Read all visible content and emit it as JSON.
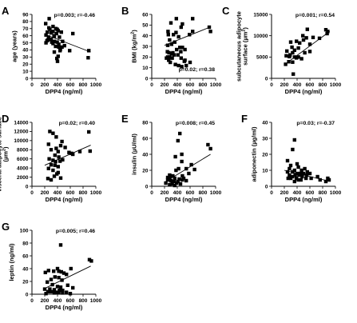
{
  "chart_data": [
    {
      "type": "scatter",
      "panel": "A",
      "xlabel": "DPP4 (ng/ml)",
      "ylabel": "age (years)",
      "xlim": [
        0,
        1000
      ],
      "ylim": [
        0,
        90
      ],
      "xticks": [
        0,
        200,
        400,
        600,
        800,
        1000
      ],
      "yticks": [
        0,
        10,
        20,
        30,
        40,
        50,
        60,
        70,
        80,
        90
      ],
      "stat": "p=0.003; r=-0.46",
      "stat_pos": "top-right",
      "trend": [
        [
          200,
          62
        ],
        [
          920,
          37
        ]
      ],
      "points": [
        [
          270,
          84
        ],
        [
          215,
          77
        ],
        [
          330,
          73
        ],
        [
          265,
          71
        ],
        [
          280,
          69
        ],
        [
          375,
          70
        ],
        [
          395,
          69
        ],
        [
          330,
          66
        ],
        [
          410,
          67
        ],
        [
          300,
          64
        ],
        [
          240,
          65
        ],
        [
          460,
          65
        ],
        [
          385,
          63
        ],
        [
          640,
          63
        ],
        [
          220,
          61
        ],
        [
          345,
          60
        ],
        [
          350,
          59
        ],
        [
          260,
          58
        ],
        [
          430,
          58
        ],
        [
          300,
          55
        ],
        [
          250,
          54
        ],
        [
          220,
          50
        ],
        [
          235,
          53
        ],
        [
          310,
          51
        ],
        [
          350,
          52
        ],
        [
          395,
          51
        ],
        [
          480,
          52
        ],
        [
          330,
          49
        ],
        [
          420,
          48
        ],
        [
          470,
          44
        ],
        [
          510,
          46
        ],
        [
          420,
          44
        ],
        [
          370,
          45
        ],
        [
          445,
          41
        ],
        [
          440,
          39
        ],
        [
          590,
          39
        ],
        [
          890,
          39
        ],
        [
          350,
          37
        ],
        [
          410,
          31
        ],
        [
          390,
          28
        ],
        [
          880,
          29
        ],
        [
          400,
          24
        ]
      ]
    },
    {
      "type": "scatter",
      "panel": "B",
      "xlabel": "DPP4 (ng/ml)",
      "ylabel": "BMI (kg/m²)",
      "ylabel_base": "BMI (kg/m",
      "ylabel_sup": "2",
      "ylabel_end": ")",
      "xlim": [
        0,
        1000
      ],
      "ylim": [
        0,
        60
      ],
      "xticks": [
        0,
        200,
        400,
        600,
        800,
        1000
      ],
      "yticks": [
        0,
        10,
        20,
        30,
        40,
        50,
        60
      ],
      "stat": "p=0.02; r=0.38",
      "stat_pos": "bottom-right",
      "trend": [
        [
          200,
          31
        ],
        [
          910,
          48
        ]
      ],
      "points": [
        [
          385,
          56
        ],
        [
          300,
          52
        ],
        [
          480,
          51
        ],
        [
          460,
          48
        ],
        [
          255,
          44
        ],
        [
          380,
          43
        ],
        [
          640,
          56
        ],
        [
          900,
          48
        ],
        [
          260,
          41
        ],
        [
          340,
          41
        ],
        [
          590,
          41
        ],
        [
          640,
          44
        ],
        [
          420,
          39
        ],
        [
          920,
          44
        ],
        [
          280,
          36
        ],
        [
          360,
          34
        ],
        [
          250,
          31
        ],
        [
          310,
          32
        ],
        [
          440,
          29
        ],
        [
          480,
          29
        ],
        [
          390,
          27
        ],
        [
          330,
          24
        ],
        [
          455,
          25
        ],
        [
          520,
          27
        ],
        [
          245,
          25
        ],
        [
          270,
          24
        ],
        [
          310,
          23
        ],
        [
          410,
          22
        ],
        [
          350,
          22
        ],
        [
          250,
          20
        ],
        [
          280,
          20
        ],
        [
          320,
          19
        ],
        [
          460,
          19
        ],
        [
          230,
          19
        ],
        [
          265,
          17
        ],
        [
          510,
          16
        ],
        [
          290,
          15
        ],
        [
          370,
          13
        ],
        [
          420,
          12
        ],
        [
          470,
          11
        ],
        [
          520,
          17
        ],
        [
          540,
          12
        ],
        [
          600,
          15
        ]
      ]
    },
    {
      "type": "scatter",
      "panel": "C",
      "xlabel": "DPP4 (ng/ml)",
      "ylabel": "subcutaneous adipocyte surface (µm²)",
      "ylabel_line1": "subcutaneous adipocyte",
      "ylabel_base": "surface (µm",
      "ylabel_sup": "2",
      "ylabel_end": ")",
      "xlim": [
        0,
        1000
      ],
      "ylim": [
        0,
        15000
      ],
      "xticks": [
        0,
        200,
        400,
        600,
        800,
        1000
      ],
      "yticks": [
        0,
        5000,
        10000,
        15000
      ],
      "stat": "p=0.001; r=0.54",
      "stat_pos": "top-right",
      "trend": [
        [
          200,
          3200
        ],
        [
          910,
          11000
        ]
      ],
      "points": [
        [
          560,
          11500
        ],
        [
          850,
          11400
        ],
        [
          880,
          11000
        ],
        [
          870,
          10500
        ],
        [
          490,
          10000
        ],
        [
          545,
          9500
        ],
        [
          650,
          9600
        ],
        [
          500,
          9000
        ],
        [
          750,
          9400
        ],
        [
          390,
          8700
        ],
        [
          300,
          8500
        ],
        [
          440,
          8300
        ],
        [
          600,
          8000
        ],
        [
          320,
          7300
        ],
        [
          420,
          7100
        ],
        [
          360,
          6600
        ],
        [
          240,
          6400
        ],
        [
          330,
          6000
        ],
        [
          290,
          5500
        ],
        [
          230,
          5300
        ],
        [
          280,
          5100
        ],
        [
          360,
          5000
        ],
        [
          420,
          5000
        ],
        [
          390,
          4800
        ],
        [
          470,
          4600
        ],
        [
          270,
          3900
        ],
        [
          330,
          3800
        ],
        [
          220,
          3300
        ],
        [
          340,
          1000
        ],
        [
          520,
          6000
        ],
        [
          600,
          6300
        ]
      ]
    },
    {
      "type": "scatter",
      "panel": "D",
      "xlabel": "DPP4 (ng/ml)",
      "ylabel": "visceral adipocyte surface (µm²)",
      "ylabel_line1": "visceral adipocyte surface",
      "ylabel_base": "(µm",
      "ylabel_sup": "2",
      "ylabel_end": ")",
      "xlim": [
        0,
        1000
      ],
      "ylim": [
        0,
        14000
      ],
      "xticks": [
        0,
        200,
        400,
        600,
        800,
        1000
      ],
      "yticks": [
        0,
        2000,
        4000,
        6000,
        8000,
        10000,
        12000,
        14000
      ],
      "stat": "p=0.02; r=0.40",
      "stat_pos": "top-right",
      "trend": [
        [
          200,
          4600
        ],
        [
          920,
          9000
        ]
      ],
      "points": [
        [
          280,
          12000
        ],
        [
          330,
          11600
        ],
        [
          890,
          11900
        ],
        [
          380,
          10800
        ],
        [
          470,
          9800
        ],
        [
          260,
          9200
        ],
        [
          450,
          8900
        ],
        [
          520,
          8500
        ],
        [
          380,
          8300
        ],
        [
          300,
          8000
        ],
        [
          410,
          7600
        ],
        [
          580,
          7400
        ],
        [
          620,
          7200
        ],
        [
          750,
          7600
        ],
        [
          640,
          7000
        ],
        [
          360,
          6800
        ],
        [
          420,
          6400
        ],
        [
          270,
          6000
        ],
        [
          330,
          5700
        ],
        [
          370,
          5400
        ],
        [
          440,
          5500
        ],
        [
          300,
          4700
        ],
        [
          360,
          4600
        ],
        [
          410,
          4300
        ],
        [
          260,
          3900
        ],
        [
          330,
          3500
        ],
        [
          410,
          3000
        ],
        [
          390,
          2700
        ],
        [
          350,
          2200
        ],
        [
          250,
          1700
        ],
        [
          300,
          1400
        ],
        [
          450,
          1800
        ],
        [
          910,
          7700
        ],
        [
          480,
          5800
        ]
      ]
    },
    {
      "type": "scatter",
      "panel": "E",
      "xlabel": "DPP4 (ng/ml)",
      "ylabel": "insulin (µU/ml)",
      "xlim": [
        0,
        1000
      ],
      "ylim": [
        0,
        80
      ],
      "xticks": [
        0,
        200,
        400,
        600,
        800,
        1000
      ],
      "yticks": [
        0,
        20,
        40,
        60,
        80
      ],
      "stat": "p=0.008; r=0.45",
      "stat_pos": "top-right",
      "trend": [
        [
          200,
          5
        ],
        [
          920,
          40
        ]
      ],
      "points": [
        [
          440,
          66
        ],
        [
          410,
          57
        ],
        [
          880,
          52
        ],
        [
          920,
          47
        ],
        [
          470,
          40
        ],
        [
          370,
          37
        ],
        [
          470,
          31
        ],
        [
          620,
          27
        ],
        [
          540,
          22
        ],
        [
          420,
          22
        ],
        [
          670,
          21
        ],
        [
          380,
          20
        ],
        [
          280,
          14
        ],
        [
          580,
          16
        ],
        [
          330,
          13
        ],
        [
          480,
          13
        ],
        [
          250,
          11
        ],
        [
          280,
          10
        ],
        [
          360,
          10
        ],
        [
          430,
          9
        ],
        [
          500,
          10
        ],
        [
          250,
          8
        ],
        [
          300,
          7
        ],
        [
          350,
          6
        ],
        [
          410,
          6
        ],
        [
          480,
          8
        ],
        [
          540,
          7
        ],
        [
          220,
          4
        ],
        [
          320,
          3
        ],
        [
          390,
          4
        ],
        [
          450,
          3
        ],
        [
          280,
          2
        ],
        [
          360,
          1
        ]
      ]
    },
    {
      "type": "scatter",
      "panel": "F",
      "xlabel": "DPP4 (ng/ml)",
      "ylabel": "adiponectin (µg/ml)",
      "xlim": [
        0,
        1000
      ],
      "ylim": [
        0,
        40
      ],
      "xticks": [
        0,
        200,
        400,
        600,
        800,
        1000
      ],
      "yticks": [
        0,
        10,
        20,
        30,
        40
      ],
      "stat": "p=0.03; r=-0.37",
      "stat_pos": "top-right",
      "trend": [
        [
          200,
          10
        ],
        [
          920,
          3
        ]
      ],
      "points": [
        [
          360,
          29
        ],
        [
          330,
          23
        ],
        [
          250,
          16
        ],
        [
          400,
          14
        ],
        [
          300,
          13
        ],
        [
          420,
          12
        ],
        [
          520,
          11
        ],
        [
          280,
          11
        ],
        [
          360,
          10
        ],
        [
          470,
          10
        ],
        [
          560,
          9
        ],
        [
          250,
          9
        ],
        [
          330,
          9
        ],
        [
          400,
          8
        ],
        [
          450,
          8
        ],
        [
          500,
          8
        ],
        [
          600,
          8
        ],
        [
          280,
          7
        ],
        [
          370,
          7
        ],
        [
          430,
          7
        ],
        [
          550,
          7
        ],
        [
          720,
          6
        ],
        [
          330,
          6
        ],
        [
          480,
          6
        ],
        [
          620,
          5
        ],
        [
          390,
          5
        ],
        [
          300,
          5
        ],
        [
          760,
          4
        ],
        [
          880,
          5
        ],
        [
          900,
          4
        ],
        [
          850,
          3
        ],
        [
          460,
          4
        ],
        [
          540,
          5
        ],
        [
          420,
          4
        ],
        [
          360,
          3
        ],
        [
          260,
          5
        ]
      ]
    },
    {
      "type": "scatter",
      "panel": "G",
      "xlabel": "DPP4 (ng/ml)",
      "ylabel": "leptin (ng/ml)",
      "xlim": [
        0,
        1000
      ],
      "ylim": [
        0,
        100
      ],
      "xticks": [
        0,
        200,
        400,
        600,
        800,
        1000
      ],
      "yticks": [
        0,
        20,
        40,
        60,
        80,
        100
      ],
      "stat": "p=0.005; r=0.46",
      "stat_pos": "top-right",
      "trend": [
        [
          200,
          9
        ],
        [
          920,
          44
        ]
      ],
      "points": [
        [
          450,
          77
        ],
        [
          900,
          54
        ],
        [
          930,
          52
        ],
        [
          400,
          40
        ],
        [
          610,
          40
        ],
        [
          260,
          37
        ],
        [
          340,
          36
        ],
        [
          420,
          36
        ],
        [
          460,
          35
        ],
        [
          210,
          34
        ],
        [
          500,
          33
        ],
        [
          540,
          31
        ],
        [
          360,
          27
        ],
        [
          420,
          26
        ],
        [
          300,
          23
        ],
        [
          470,
          22
        ],
        [
          240,
          19
        ],
        [
          320,
          15
        ],
        [
          560,
          14
        ],
        [
          400,
          12
        ],
        [
          450,
          11
        ],
        [
          640,
          10
        ],
        [
          200,
          8
        ],
        [
          280,
          8
        ],
        [
          350,
          7
        ],
        [
          430,
          6
        ],
        [
          480,
          6
        ],
        [
          250,
          4
        ],
        [
          300,
          4
        ],
        [
          370,
          3
        ],
        [
          420,
          3
        ],
        [
          540,
          3
        ],
        [
          350,
          2
        ],
        [
          480,
          2
        ],
        [
          220,
          1
        ],
        [
          600,
          1
        ]
      ]
    }
  ]
}
